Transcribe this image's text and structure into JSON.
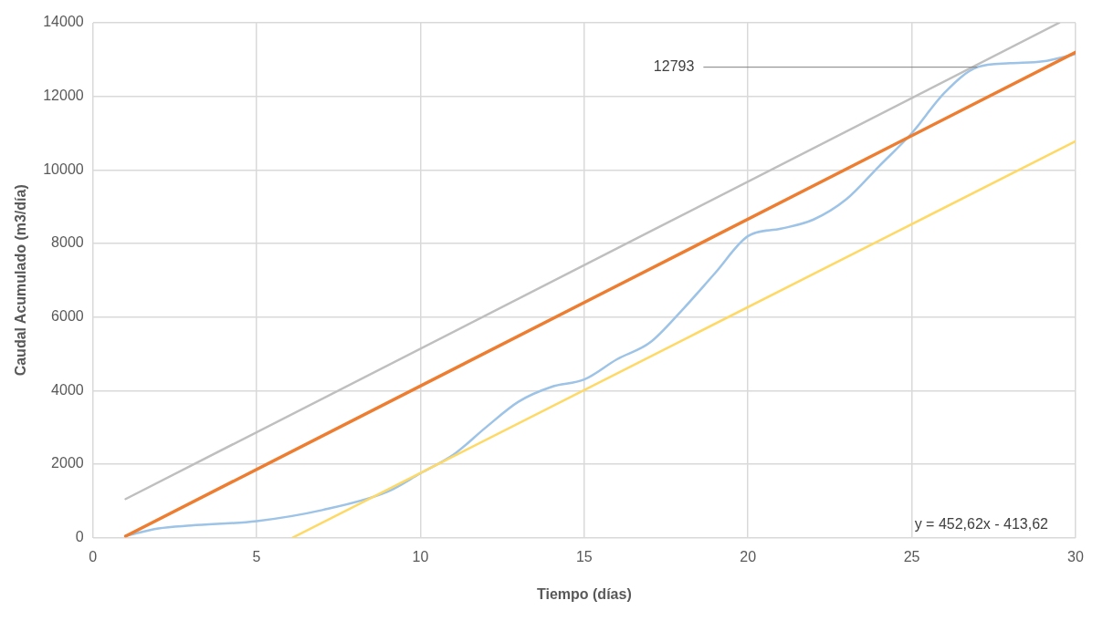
{
  "chart_data": {
    "type": "line",
    "xlabel": "Tiempo (días)",
    "ylabel": "Caudal Acumulado (m3/día)",
    "xlim": [
      0,
      30
    ],
    "xticks": [
      0,
      5,
      10,
      15,
      20,
      25,
      30
    ],
    "ylim": [
      0,
      14000
    ],
    "yticks": [
      0,
      2000,
      4000,
      6000,
      8000,
      10000,
      12000,
      14000
    ],
    "grid": true,
    "legend": false,
    "marker": "none",
    "line_style": "solid",
    "series": [
      {
        "color": "#9dc3e6",
        "x": [
          1,
          2,
          3,
          5,
          7,
          9,
          10,
          11,
          12,
          13,
          14,
          15,
          16,
          17,
          18,
          19,
          20,
          21,
          22,
          23,
          24,
          25,
          26,
          27,
          28,
          29,
          30
        ],
        "values": [
          50,
          250,
          330,
          450,
          750,
          1250,
          1750,
          2250,
          3000,
          3700,
          4100,
          4300,
          4850,
          5300,
          6200,
          7200,
          8200,
          8400,
          8650,
          9200,
          10100,
          11000,
          12100,
          12793,
          12900,
          12950,
          13150
        ]
      },
      {
        "color": "#ed7d31",
        "x": [
          1,
          30
        ],
        "values": [
          40,
          13200
        ]
      },
      {
        "color": "#bfbfbf",
        "x": [
          1,
          29.5
        ],
        "values": [
          1050,
          14000
        ]
      },
      {
        "color": "#ffd966",
        "x": [
          6.1,
          30
        ],
        "values": [
          0,
          10780
        ]
      }
    ],
    "annotations": [
      {
        "text": "12793",
        "x": 27,
        "y": 12793
      },
      "y = 452,62x - 413,62"
    ]
  }
}
